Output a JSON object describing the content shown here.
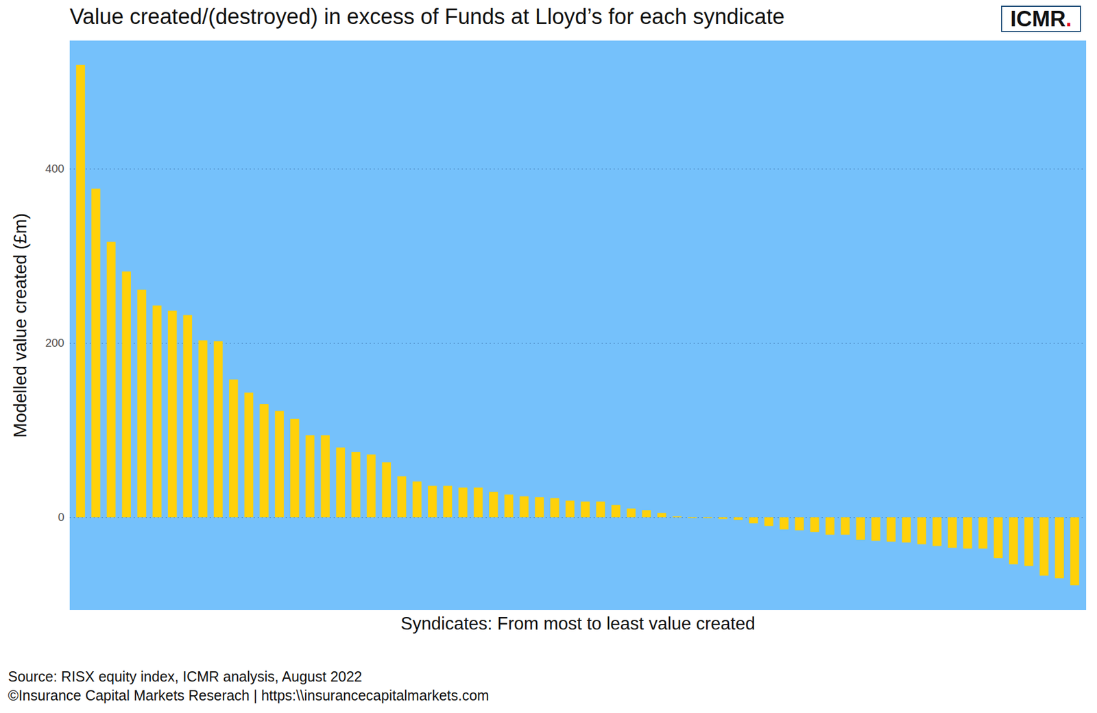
{
  "chart_data": {
    "type": "bar",
    "title": "Value created/(destroyed) in excess of Funds at Lloyd’s for each syndicate",
    "logo": "ICMR.",
    "x_label": "Syndicates: From most to least value created",
    "y_label": "Modelled value created (£m)",
    "caption": [
      "Source: RISX equity index, ICMR analysis, August 2022",
      "©Insurance Capital Markets Reserach | https:\\\\insurancecapitalmarkets.com"
    ],
    "categories": [
      null,
      null,
      null,
      null,
      null,
      null,
      null,
      null,
      null,
      null,
      null,
      null,
      null,
      null,
      null,
      null,
      null,
      null,
      null,
      null,
      null,
      null,
      null,
      null,
      null,
      null,
      null,
      null,
      null,
      null,
      null,
      null,
      null,
      null,
      null,
      null,
      null,
      null,
      null,
      null,
      null,
      null,
      null,
      null,
      null,
      null,
      null,
      null,
      null,
      null,
      null,
      null,
      null,
      null,
      null,
      null,
      null,
      null,
      null,
      null,
      null,
      null,
      null,
      null,
      null,
      null
    ],
    "values": [
      519,
      377,
      316,
      282,
      261,
      243,
      237,
      232,
      203,
      202,
      158,
      143,
      130,
      122,
      113,
      94,
      94,
      80,
      75,
      72,
      63,
      47,
      41,
      36,
      36,
      34,
      34,
      29,
      26,
      24,
      23,
      22,
      19,
      18,
      18,
      14,
      10,
      8,
      5,
      1,
      -1,
      -1,
      -2,
      -3,
      -7,
      -10,
      -14,
      -15,
      -17,
      -20,
      -20,
      -26,
      -27,
      -28,
      -29,
      -31,
      -33,
      -35,
      -36,
      -36,
      -47,
      -54,
      -56,
      -67,
      -70,
      -78
    ],
    "color": "#ffd10a",
    "ylim": [
      -106,
      547
    ],
    "yticks": [
      0,
      200,
      400
    ],
    "grid": true,
    "tick_labels": "y"
  }
}
